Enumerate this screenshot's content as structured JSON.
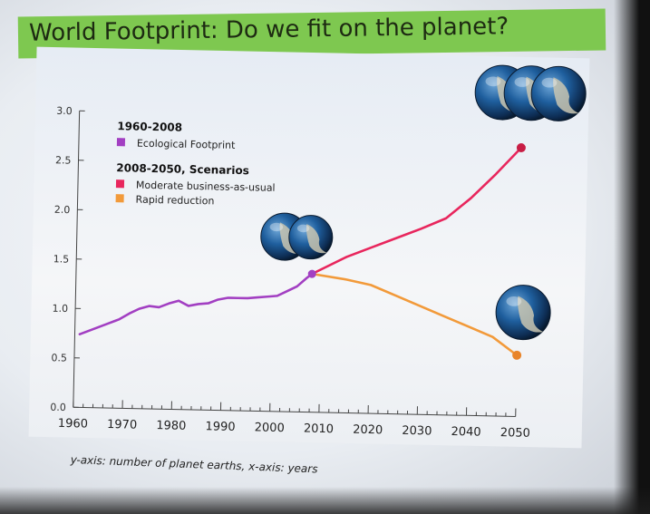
{
  "slide": {
    "title": "World Footprint: Do we fit on the planet?",
    "footnote": "y-axis: number of planet earths, x-axis: years"
  },
  "colors": {
    "title_bar": "#7ec850",
    "ecological_footprint": "#a23fc2",
    "business_as_usual": "#e8265d",
    "rapid_reduction": "#f29a3a",
    "axis": "#444444"
  },
  "icons": {
    "earth_globe": "earth-globe-icon"
  },
  "chart_data": {
    "type": "line",
    "xlim": [
      1960,
      2050
    ],
    "ylim": [
      0,
      3.0
    ],
    "x_ticks": [
      "1960",
      "1970",
      "1980",
      "1990",
      "2000",
      "2010",
      "2020",
      "2030",
      "2040",
      "2050"
    ],
    "y_ticks": [
      "0.0",
      "0.5",
      "1.0",
      "1.5",
      "2.0",
      "2.5",
      "3.0"
    ],
    "legend": {
      "placement": "top-left",
      "group1_heading": "1960-2008",
      "group2_heading": "2008-2050, Scenarios"
    },
    "series": [
      {
        "name": "Ecological Footprint",
        "x": [
          1961,
          1963,
          1965,
          1967,
          1969,
          1971,
          1973,
          1975,
          1977,
          1979,
          1981,
          1983,
          1985,
          1987,
          1989,
          1991,
          1993,
          1995,
          1997,
          1999,
          2001,
          2003,
          2005,
          2007,
          2008
        ],
        "y": [
          0.74,
          0.78,
          0.82,
          0.86,
          0.9,
          0.96,
          1.01,
          1.04,
          1.03,
          1.07,
          1.1,
          1.05,
          1.07,
          1.08,
          1.12,
          1.14,
          1.14,
          1.14,
          1.15,
          1.16,
          1.17,
          1.22,
          1.27,
          1.36,
          1.4
        ]
      },
      {
        "name": "Moderate business-as-usual",
        "x": [
          2008,
          2015,
          2020,
          2025,
          2030,
          2035,
          2040,
          2045,
          2050
        ],
        "y": [
          1.4,
          1.58,
          1.68,
          1.78,
          1.88,
          1.99,
          2.2,
          2.45,
          2.72
        ]
      },
      {
        "name": "Rapid reduction",
        "x": [
          2008,
          2015,
          2020,
          2025,
          2030,
          2035,
          2040,
          2045,
          2050
        ],
        "y": [
          1.4,
          1.35,
          1.3,
          1.2,
          1.1,
          1.0,
          0.9,
          0.8,
          0.62
        ]
      }
    ]
  }
}
